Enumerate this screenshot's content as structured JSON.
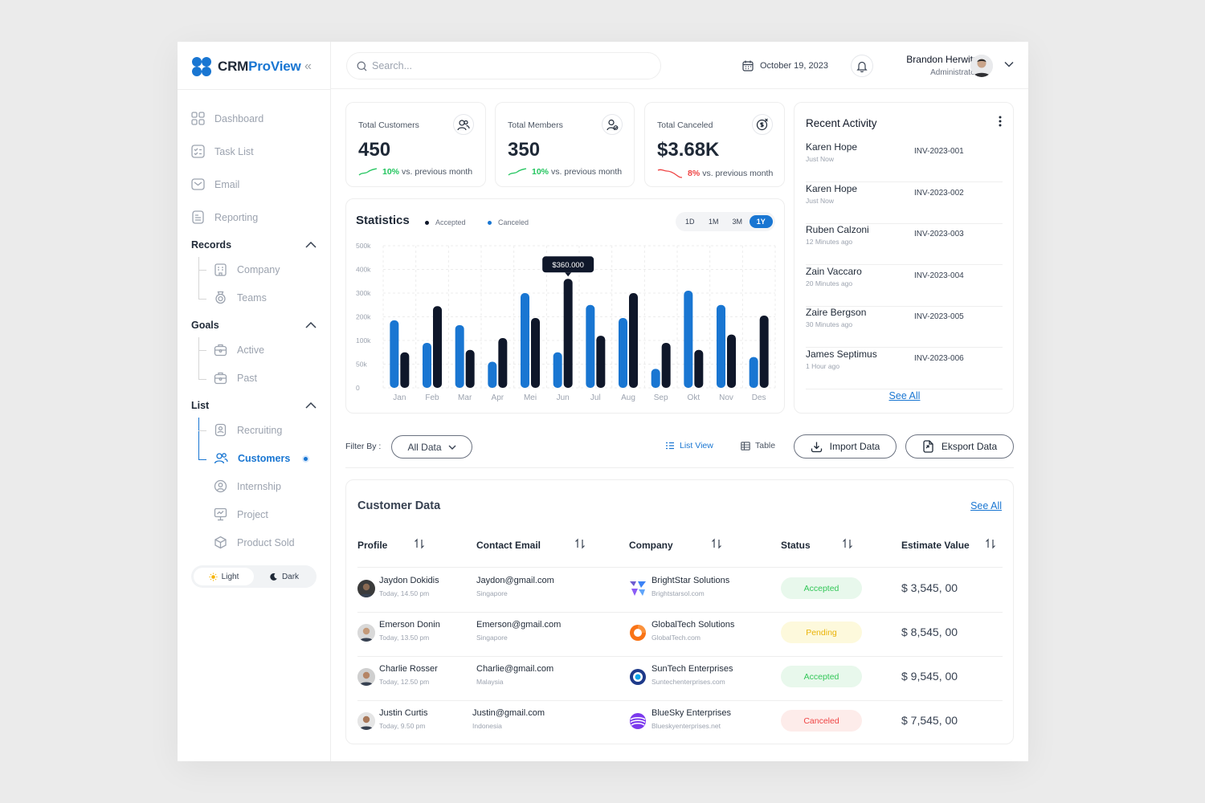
{
  "app": {
    "name_a": "CRM",
    "name_b": "ProView",
    "collapse": "«"
  },
  "sidebar": {
    "main": [
      {
        "label": "Dashboard",
        "icon": "grid-icon"
      },
      {
        "label": "Task List",
        "icon": "checklist-icon"
      },
      {
        "label": "Email",
        "icon": "mail-icon"
      },
      {
        "label": "Reporting",
        "icon": "report-icon"
      }
    ],
    "records": {
      "title": "Records",
      "items": [
        {
          "label": "Company"
        },
        {
          "label": "Teams"
        }
      ]
    },
    "goals": {
      "title": "Goals",
      "items": [
        {
          "label": "Active"
        },
        {
          "label": "Past"
        }
      ]
    },
    "list": {
      "title": "List",
      "items": [
        {
          "label": "Recruiting"
        },
        {
          "label": "Customers"
        },
        {
          "label": "Internship"
        },
        {
          "label": "Project"
        },
        {
          "label": "Product Sold"
        }
      ]
    },
    "theme": {
      "light": "Light",
      "dark": "Dark"
    }
  },
  "header": {
    "search_placeholder": "Search...",
    "date": "October 19, 2023",
    "user_name": "Brandon Herwitz",
    "user_role": "Administrator"
  },
  "stats": [
    {
      "label": "Total Customers",
      "value": "450",
      "pct": "10%",
      "suffix": "vs. previous month",
      "trend": "up"
    },
    {
      "label": "Total Members",
      "value": "350",
      "pct": "10%",
      "suffix": "vs. previous month",
      "trend": "up"
    },
    {
      "label": "Total Canceled",
      "value": "$3.68K",
      "pct": "8%",
      "suffix": "vs. previous month",
      "trend": "down"
    }
  ],
  "statistics": {
    "title": "Statistics",
    "legend_accepted": "Accepted",
    "legend_canceled": "Canceled",
    "periods": [
      "1D",
      "1M",
      "3M",
      "1Y"
    ],
    "active_period": "1Y",
    "tooltip": "$360.000"
  },
  "chart_data": {
    "type": "bar",
    "categories": [
      "Jan",
      "Feb",
      "Mar",
      "Apr",
      "Mei",
      "Jun",
      "Jul",
      "Aug",
      "Sep",
      "Okt",
      "Nov",
      "Des"
    ],
    "series": [
      {
        "name": "Accepted",
        "color": "#1976d2",
        "values": [
          185,
          95,
          165,
          55,
          300,
          75,
          250,
          195,
          40,
          310,
          250,
          65
        ]
      },
      {
        "name": "Canceled",
        "color": "#0f172a",
        "values": [
          75,
          245,
          80,
          110,
          195,
          360,
          120,
          300,
          95,
          80,
          125,
          205
        ]
      }
    ],
    "y_tick_labels": [
      "500k",
      "400k",
      "300k",
      "200k",
      "100k",
      "50k",
      "0"
    ],
    "y_tick_values": [
      500,
      400,
      300,
      200,
      100,
      50,
      0
    ],
    "ylim": [
      0,
      500
    ],
    "grid": true
  },
  "activity": {
    "title": "Recent Activity",
    "see_all": "See All",
    "items": [
      {
        "name": "Karen Hope",
        "time": "Just Now",
        "inv": "INV-2023-001"
      },
      {
        "name": "Karen Hope",
        "time": "Just Now",
        "inv": "INV-2023-002"
      },
      {
        "name": "Ruben Calzoni",
        "time": "12 Minutes ago",
        "inv": "INV-2023-003"
      },
      {
        "name": "Zain Vaccaro",
        "time": "20 Minutes ago",
        "inv": "INV-2023-004"
      },
      {
        "name": "Zaire Bergson",
        "time": "30 Minutes ago",
        "inv": "INV-2023-005"
      },
      {
        "name": "James Septimus",
        "time": "1 Hour ago",
        "inv": "INV-2023-006"
      }
    ]
  },
  "filter": {
    "label": "Filter By :",
    "select": "All Data",
    "list_view": "List View",
    "table": "Table",
    "import": "Import Data",
    "export": "Eksport Data"
  },
  "table": {
    "title": "Customer Data",
    "see_all": "See All",
    "columns": [
      "Profile",
      "Contact Email",
      "Company",
      "Status",
      "Estimate Value"
    ],
    "rows": [
      {
        "name": "Jaydon Dokidis",
        "time": "Today, 14.50 pm",
        "email": "Jaydon@gmail.com",
        "country": "Singapore",
        "company": "BrightStar Solutions",
        "site": "Brightstarsol.com",
        "status": "Accepted",
        "value": "$ 3,545, 00"
      },
      {
        "name": "Emerson Donin",
        "time": "Today, 13.50 pm",
        "email": "Emerson@gmail.com",
        "country": "Singapore",
        "company": "GlobalTech Solutions",
        "site": "GlobalTech.com",
        "status": "Pending",
        "value": "$ 8,545, 00"
      },
      {
        "name": "Charlie Rosser",
        "time": "Today, 12.50 pm",
        "email": "Charlie@gmail.com",
        "country": "Malaysia",
        "company": "SunTech Enterprises",
        "site": "Suntechenterprises.com",
        "status": "Accepted",
        "value": "$ 9,545, 00"
      },
      {
        "name": "Justin Curtis",
        "time": "Today, 9.50 pm",
        "email": "Justin@gmail.com",
        "country": "Indonesia",
        "company": "BlueSky Enterprises",
        "site": "Blueskyenterprises.net",
        "status": "Canceled",
        "value": "$ 7,545, 00"
      }
    ]
  },
  "colors": {
    "accent": "#1976d2",
    "dark": "#0f172a",
    "accepted_bg": "#e8f8ec",
    "accepted_fg": "#34c759",
    "pending_bg": "#fdf9dc",
    "pending_fg": "#eab308",
    "canceled_bg": "#fdecea",
    "canceled_fg": "#ef4444"
  }
}
